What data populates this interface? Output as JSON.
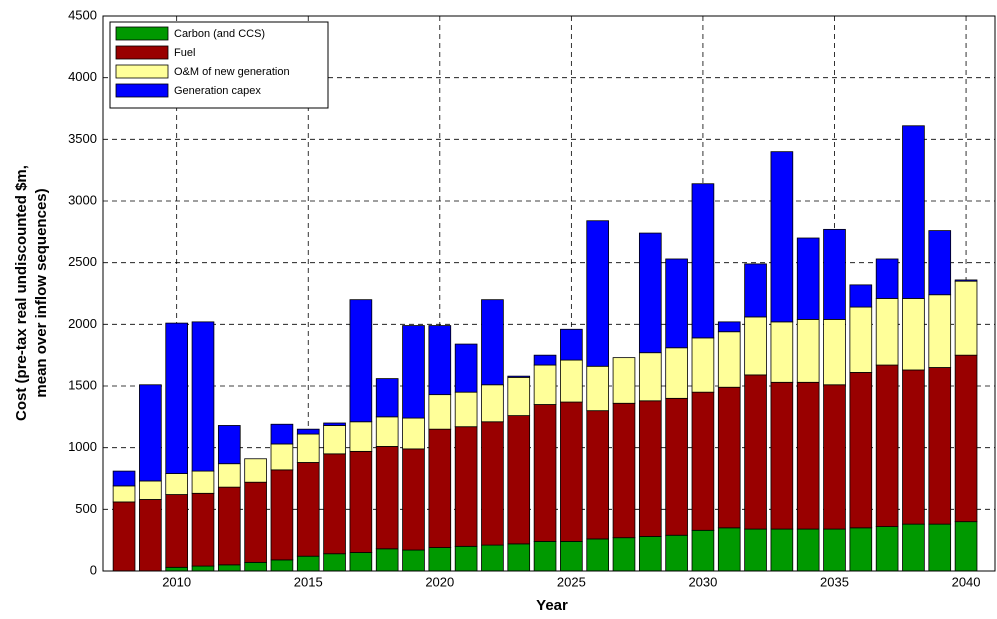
{
  "chart_data": {
    "type": "stacked-bar",
    "xlabel": "Year",
    "ylabel": [
      "Cost (pre-tax real undiscounted $m,",
      "mean over inflow sequences)"
    ],
    "x": [
      2008,
      2009,
      2010,
      2011,
      2012,
      2013,
      2014,
      2015,
      2016,
      2017,
      2018,
      2019,
      2020,
      2021,
      2022,
      2023,
      2024,
      2025,
      2026,
      2027,
      2028,
      2029,
      2030,
      2031,
      2032,
      2033,
      2034,
      2035,
      2036,
      2037,
      2038,
      2039,
      2040
    ],
    "series": [
      {
        "name": "Carbon (and CCS)",
        "color": "#009900",
        "values": [
          0,
          0,
          30,
          40,
          50,
          70,
          90,
          120,
          140,
          150,
          180,
          170,
          190,
          200,
          210,
          220,
          240,
          240,
          260,
          270,
          280,
          290,
          330,
          350,
          340,
          340,
          340,
          340,
          350,
          360,
          380,
          380,
          400
        ]
      },
      {
        "name": "Fuel",
        "color": "#990000",
        "values": [
          560,
          580,
          590,
          590,
          630,
          650,
          730,
          760,
          810,
          820,
          830,
          820,
          960,
          970,
          1000,
          1040,
          1110,
          1130,
          1040,
          1090,
          1100,
          1110,
          1120,
          1140,
          1250,
          1190,
          1190,
          1170,
          1260,
          1310,
          1250,
          1270,
          1350
        ]
      },
      {
        "name": "O&M of new generation",
        "color": "#ffff99",
        "values": [
          130,
          150,
          170,
          180,
          190,
          190,
          210,
          230,
          230,
          240,
          240,
          250,
          280,
          280,
          300,
          310,
          320,
          340,
          360,
          370,
          390,
          410,
          440,
          450,
          470,
          490,
          510,
          530,
          530,
          540,
          580,
          590,
          600
        ]
      },
      {
        "name": "Generation capex",
        "color": "#0000ff",
        "values": [
          120,
          780,
          1220,
          1210,
          310,
          0,
          160,
          40,
          20,
          990,
          310,
          750,
          560,
          390,
          690,
          10,
          80,
          250,
          1180,
          0,
          970,
          720,
          1250,
          80,
          430,
          1380,
          660,
          730,
          180,
          320,
          1400,
          520,
          10
        ]
      }
    ],
    "xlim": [
      2007.2,
      2041.1
    ],
    "xticks": [
      2010,
      2015,
      2020,
      2025,
      2030,
      2035,
      2040
    ],
    "ylim": [
      0,
      4500
    ],
    "yticks": [
      0,
      500,
      1000,
      1500,
      2000,
      2500,
      3000,
      3500,
      4000,
      4500
    ],
    "grid": true,
    "legend": "upper-left"
  }
}
